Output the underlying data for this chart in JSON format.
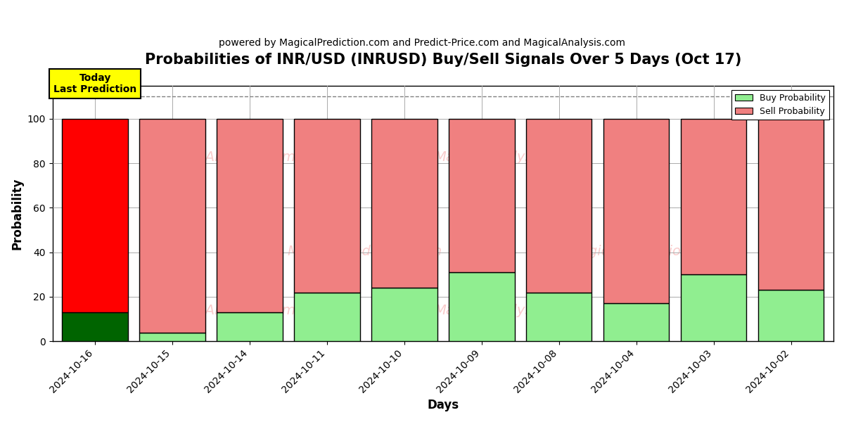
{
  "title": "Probabilities of INR/USD (INRUSD) Buy/Sell Signals Over 5 Days (Oct 17)",
  "subtitle": "powered by MagicalPrediction.com and Predict-Price.com and MagicalAnalysis.com",
  "xlabel": "Days",
  "ylabel": "Probability",
  "dates": [
    "2024-10-16",
    "2024-10-15",
    "2024-10-14",
    "2024-10-11",
    "2024-10-10",
    "2024-10-09",
    "2024-10-08",
    "2024-10-04",
    "2024-10-03",
    "2024-10-02"
  ],
  "buy_probs": [
    13,
    4,
    13,
    22,
    24,
    31,
    22,
    17,
    30,
    23
  ],
  "sell_probs": [
    87,
    96,
    87,
    78,
    76,
    69,
    78,
    83,
    70,
    77
  ],
  "today_bar_buy_color": "#006400",
  "today_bar_sell_color": "#FF0000",
  "other_bar_buy_color": "#90EE90",
  "other_bar_sell_color": "#F08080",
  "bar_edge_color": "#000000",
  "today_label_bg": "#FFFF00",
  "today_label_text": "Today\nLast Prediction",
  "dashed_line_y": 110,
  "ylim": [
    0,
    115
  ],
  "yticks": [
    0,
    20,
    40,
    60,
    80,
    100
  ],
  "grid_color": "#aaaaaa",
  "legend_buy_label": "Buy Probability",
  "legend_sell_label": "Sell Probability",
  "bar_width": 0.85,
  "title_fontsize": 15,
  "subtitle_fontsize": 10,
  "axis_label_fontsize": 12,
  "tick_fontsize": 10,
  "fig_facecolor": "#ffffff",
  "plot_facecolor": "#ffffff"
}
